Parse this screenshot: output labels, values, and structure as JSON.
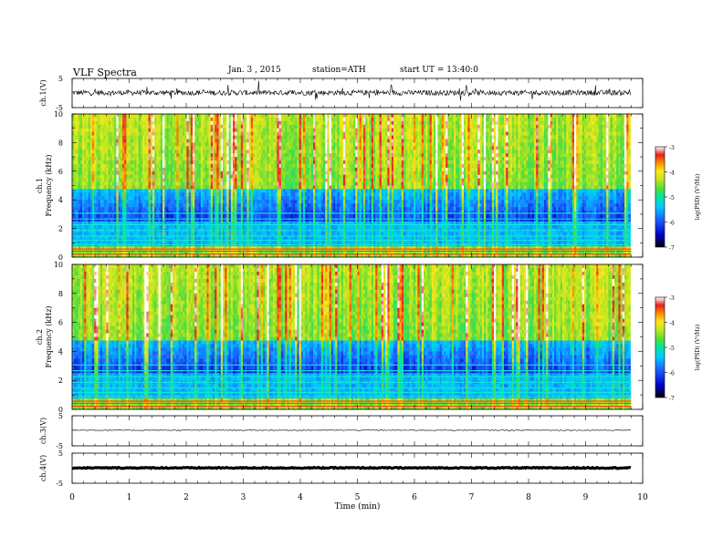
{
  "header": {
    "title": "VLF Spectra",
    "date": "Jan. 3 , 2015",
    "station": "station=ATH",
    "start": "start UT = 13:40:0"
  },
  "chart_data": [
    {
      "type": "line",
      "name": "ch.1 waveform",
      "ylabel": "ch.1(V)",
      "ylim": [
        -5,
        5
      ],
      "yticks": [
        "5",
        "-5"
      ],
      "xlim": [
        0,
        10
      ],
      "x_end": 9.8,
      "baseline": 0.1
    },
    {
      "type": "heatmap",
      "name": "ch.1 spectrogram",
      "ylabel_top": "ch.1",
      "ylabel": "Frequency (kHz)",
      "ylim": [
        0,
        10
      ],
      "yticks": [
        "0",
        "2",
        "4",
        "6",
        "8",
        "10"
      ],
      "xlim": [
        0,
        10
      ],
      "x_end": 9.8,
      "colorbar": {
        "label": "log(PSD) (V²/Hz)",
        "range": [
          -7,
          -3
        ],
        "ticks": [
          "-3",
          "-4",
          "-5",
          "-6",
          "-7"
        ]
      }
    },
    {
      "type": "heatmap",
      "name": "ch.2 spectrogram",
      "ylabel_top": "ch.2",
      "ylabel": "Frequency (kHz)",
      "ylim": [
        0,
        10
      ],
      "yticks": [
        "0",
        "2",
        "4",
        "6",
        "8",
        "10"
      ],
      "xlim": [
        0,
        10
      ],
      "x_end": 9.8,
      "colorbar": {
        "label": "log(PSD) (V²/Hz)",
        "range": [
          -7,
          -3
        ],
        "ticks": [
          "-3",
          "-4",
          "-5",
          "-6",
          "-7"
        ]
      }
    },
    {
      "type": "line",
      "name": "ch.3 waveform",
      "ylabel": "ch.3(V)",
      "ylim": [
        -5,
        5
      ],
      "yticks": [
        "5",
        "-5"
      ],
      "xlim": [
        0,
        10
      ],
      "x_end": 9.8,
      "baseline": 0.2
    },
    {
      "type": "line",
      "name": "ch.4 waveform",
      "ylabel": "ch.4(V)",
      "ylim": [
        -5,
        5
      ],
      "yticks": [
        "5",
        "-5"
      ],
      "xlim": [
        0,
        10
      ],
      "x_end": 9.8,
      "baseline": 0.1,
      "xlabel": "Time (min)",
      "xticks": [
        "0",
        "1",
        "2",
        "3",
        "4",
        "5",
        "6",
        "7",
        "8",
        "9",
        "10"
      ]
    }
  ],
  "colors": {
    "axis": "#000000",
    "colormap": [
      "#000040",
      "#0000c8",
      "#1e64ff",
      "#00c8ff",
      "#00e6a0",
      "#50dc3c",
      "#c8e61e",
      "#ffe61e",
      "#ff8c00",
      "#e61e1e",
      "#ffffff"
    ]
  }
}
